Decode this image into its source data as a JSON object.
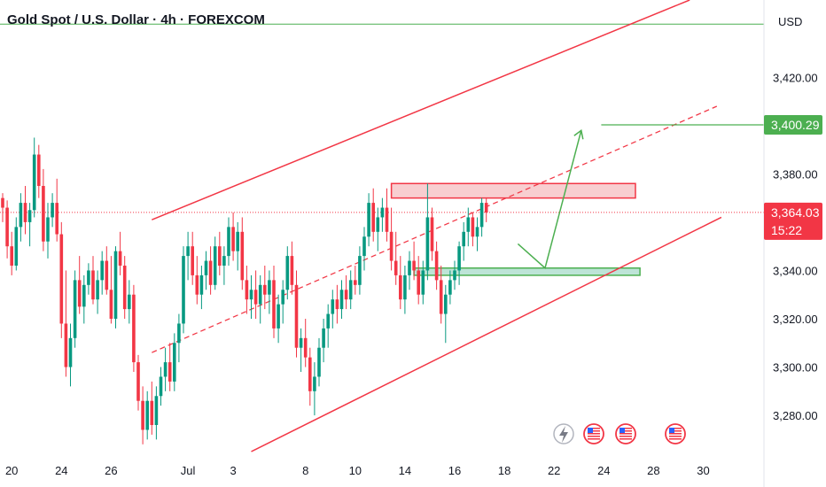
{
  "header": {
    "title": "Gold Spot / U.S. Dollar · 4h · FOREXCOM"
  },
  "axis": {
    "currency": "USD"
  },
  "chart_data": {
    "type": "candlestick",
    "title": "Gold Spot / U.S. Dollar · 4h · FOREXCOM",
    "ylim": [
      3265,
      3452
    ],
    "y_ticks": [
      3280,
      3300,
      3320,
      3340,
      3380,
      3420
    ],
    "y_tick_labels": [
      "3,280.00",
      "3,300.00",
      "3,320.00",
      "3,340.00",
      "3,380.00",
      "3,420.00"
    ],
    "x_ticks": [
      {
        "label": "20",
        "bar": 2
      },
      {
        "label": "24",
        "bar": 13
      },
      {
        "label": "26",
        "bar": 24
      },
      {
        "label": "Jul",
        "bar": 41
      },
      {
        "label": "3",
        "bar": 51
      },
      {
        "label": "8",
        "bar": 67
      },
      {
        "label": "10",
        "bar": 78
      },
      {
        "label": "14",
        "bar": 89
      },
      {
        "label": "16",
        "bar": 100
      },
      {
        "label": "18",
        "bar": 111
      },
      {
        "label": "22",
        "bar": 122
      },
      {
        "label": "24",
        "bar": 133
      },
      {
        "label": "28",
        "bar": 144
      },
      {
        "label": "30",
        "bar": 155
      }
    ],
    "current_price": {
      "value": 3364.03,
      "label": "3,364.03",
      "countdown": "15:22",
      "color": "#f23645"
    },
    "target_price": {
      "value": 3400.29,
      "label": "3,400.29",
      "color": "#4caf50"
    },
    "green_line_price": 3442,
    "colors": {
      "up": "#089981",
      "down": "#f23645",
      "zone_resistance": "#f7c5c8",
      "zone_support": "#b2dfd0"
    },
    "zones": [
      {
        "type": "resistance",
        "bar_start": 86,
        "bar_end": 140,
        "top": 3376,
        "bottom": 3370
      },
      {
        "type": "support",
        "bar_start": 91,
        "bar_end": 141,
        "top": 3341,
        "bottom": 3338
      }
    ],
    "channel": {
      "upper": [
        [
          33,
          3361
        ],
        [
          152,
          3452
        ]
      ],
      "middle": [
        [
          33,
          3306
        ],
        [
          158,
          3408
        ]
      ],
      "lower": [
        [
          55,
          3265
        ],
        [
          159,
          3362
        ]
      ]
    },
    "projection": [
      [
        114,
        3351
      ],
      [
        120,
        3341
      ],
      [
        128,
        3398
      ]
    ],
    "candles": [
      [
        3370,
        3372,
        3360,
        3366
      ],
      [
        3366,
        3369,
        3345,
        3350
      ],
      [
        3350,
        3356,
        3338,
        3342
      ],
      [
        3342,
        3362,
        3340,
        3358
      ],
      [
        3358,
        3372,
        3352,
        3368
      ],
      [
        3368,
        3375,
        3355,
        3360
      ],
      [
        3360,
        3368,
        3350,
        3365
      ],
      [
        3365,
        3395,
        3362,
        3388
      ],
      [
        3388,
        3392,
        3370,
        3375
      ],
      [
        3375,
        3382,
        3348,
        3352
      ],
      [
        3352,
        3368,
        3345,
        3362
      ],
      [
        3362,
        3372,
        3358,
        3368
      ],
      [
        3368,
        3378,
        3352,
        3355
      ],
      [
        3355,
        3360,
        3312,
        3318
      ],
      [
        3318,
        3340,
        3296,
        3300
      ],
      [
        3300,
        3318,
        3292,
        3312
      ],
      [
        3312,
        3340,
        3308,
        3336
      ],
      [
        3336,
        3346,
        3322,
        3325
      ],
      [
        3325,
        3338,
        3318,
        3334
      ],
      [
        3334,
        3343,
        3330,
        3340
      ],
      [
        3340,
        3346,
        3326,
        3328
      ],
      [
        3328,
        3340,
        3322,
        3336
      ],
      [
        3336,
        3348,
        3330,
        3344
      ],
      [
        3344,
        3350,
        3330,
        3332
      ],
      [
        3332,
        3346,
        3318,
        3320
      ],
      [
        3320,
        3350,
        3316,
        3348
      ],
      [
        3348,
        3356,
        3338,
        3342
      ],
      [
        3342,
        3346,
        3320,
        3324
      ],
      [
        3324,
        3336,
        3318,
        3330
      ],
      [
        3330,
        3334,
        3298,
        3302
      ],
      [
        3302,
        3305,
        3282,
        3286
      ],
      [
        3286,
        3292,
        3268,
        3274
      ],
      [
        3274,
        3290,
        3270,
        3286
      ],
      [
        3286,
        3294,
        3272,
        3276
      ],
      [
        3276,
        3292,
        3270,
        3288
      ],
      [
        3288,
        3300,
        3284,
        3296
      ],
      [
        3296,
        3308,
        3290,
        3302
      ],
      [
        3302,
        3310,
        3290,
        3294
      ],
      [
        3294,
        3314,
        3290,
        3310
      ],
      [
        3310,
        3322,
        3302,
        3318
      ],
      [
        3318,
        3350,
        3314,
        3346
      ],
      [
        3346,
        3356,
        3336,
        3350
      ],
      [
        3350,
        3356,
        3334,
        3338
      ],
      [
        3338,
        3346,
        3326,
        3330
      ],
      [
        3330,
        3342,
        3324,
        3338
      ],
      [
        3338,
        3348,
        3332,
        3344
      ],
      [
        3344,
        3350,
        3330,
        3334
      ],
      [
        3334,
        3354,
        3332,
        3350
      ],
      [
        3350,
        3356,
        3338,
        3342
      ],
      [
        3342,
        3350,
        3334,
        3346
      ],
      [
        3346,
        3362,
        3342,
        3358
      ],
      [
        3358,
        3364,
        3344,
        3348
      ],
      [
        3348,
        3360,
        3340,
        3356
      ],
      [
        3356,
        3362,
        3332,
        3336
      ],
      [
        3336,
        3342,
        3322,
        3328
      ],
      [
        3328,
        3338,
        3320,
        3332
      ],
      [
        3332,
        3340,
        3320,
        3326
      ],
      [
        3326,
        3338,
        3318,
        3334
      ],
      [
        3334,
        3342,
        3324,
        3330
      ],
      [
        3330,
        3340,
        3322,
        3336
      ],
      [
        3336,
        3342,
        3312,
        3316
      ],
      [
        3316,
        3330,
        3310,
        3326
      ],
      [
        3326,
        3336,
        3318,
        3332
      ],
      [
        3332,
        3350,
        3328,
        3346
      ],
      [
        3346,
        3352,
        3330,
        3334
      ],
      [
        3334,
        3340,
        3304,
        3308
      ],
      [
        3308,
        3316,
        3298,
        3312
      ],
      [
        3312,
        3320,
        3300,
        3304
      ],
      [
        3304,
        3308,
        3284,
        3290
      ],
      [
        3290,
        3302,
        3280,
        3296
      ],
      [
        3296,
        3312,
        3292,
        3308
      ],
      [
        3308,
        3320,
        3302,
        3316
      ],
      [
        3316,
        3326,
        3308,
        3322
      ],
      [
        3322,
        3332,
        3316,
        3328
      ],
      [
        3328,
        3334,
        3318,
        3324
      ],
      [
        3324,
        3336,
        3320,
        3332
      ],
      [
        3332,
        3338,
        3324,
        3328
      ],
      [
        3328,
        3340,
        3324,
        3336
      ],
      [
        3336,
        3342,
        3330,
        3334
      ],
      [
        3334,
        3350,
        3330,
        3346
      ],
      [
        3346,
        3358,
        3340,
        3354
      ],
      [
        3354,
        3372,
        3350,
        3368
      ],
      [
        3368,
        3374,
        3352,
        3356
      ],
      [
        3356,
        3366,
        3348,
        3362
      ],
      [
        3362,
        3370,
        3356,
        3366
      ],
      [
        3366,
        3374,
        3352,
        3356
      ],
      [
        3356,
        3366,
        3340,
        3344
      ],
      [
        3344,
        3356,
        3334,
        3338
      ],
      [
        3338,
        3346,
        3324,
        3328
      ],
      [
        3328,
        3342,
        3322,
        3338
      ],
      [
        3338,
        3348,
        3332,
        3344
      ],
      [
        3344,
        3352,
        3336,
        3340
      ],
      [
        3340,
        3346,
        3326,
        3330
      ],
      [
        3330,
        3344,
        3326,
        3340
      ],
      [
        3340,
        3376,
        3336,
        3362
      ],
      [
        3362,
        3366,
        3344,
        3348
      ],
      [
        3348,
        3352,
        3332,
        3336
      ],
      [
        3336,
        3342,
        3318,
        3322
      ],
      [
        3322,
        3334,
        3310,
        3330
      ],
      [
        3330,
        3340,
        3326,
        3336
      ],
      [
        3336,
        3344,
        3332,
        3340
      ],
      [
        3340,
        3352,
        3334,
        3350
      ],
      [
        3350,
        3360,
        3344,
        3356
      ],
      [
        3356,
        3366,
        3350,
        3362
      ],
      [
        3362,
        3364,
        3350,
        3354
      ],
      [
        3354,
        3362,
        3348,
        3358
      ],
      [
        3358,
        3370,
        3354,
        3368
      ],
      [
        3368,
        3370,
        3360,
        3364
      ]
    ]
  }
}
